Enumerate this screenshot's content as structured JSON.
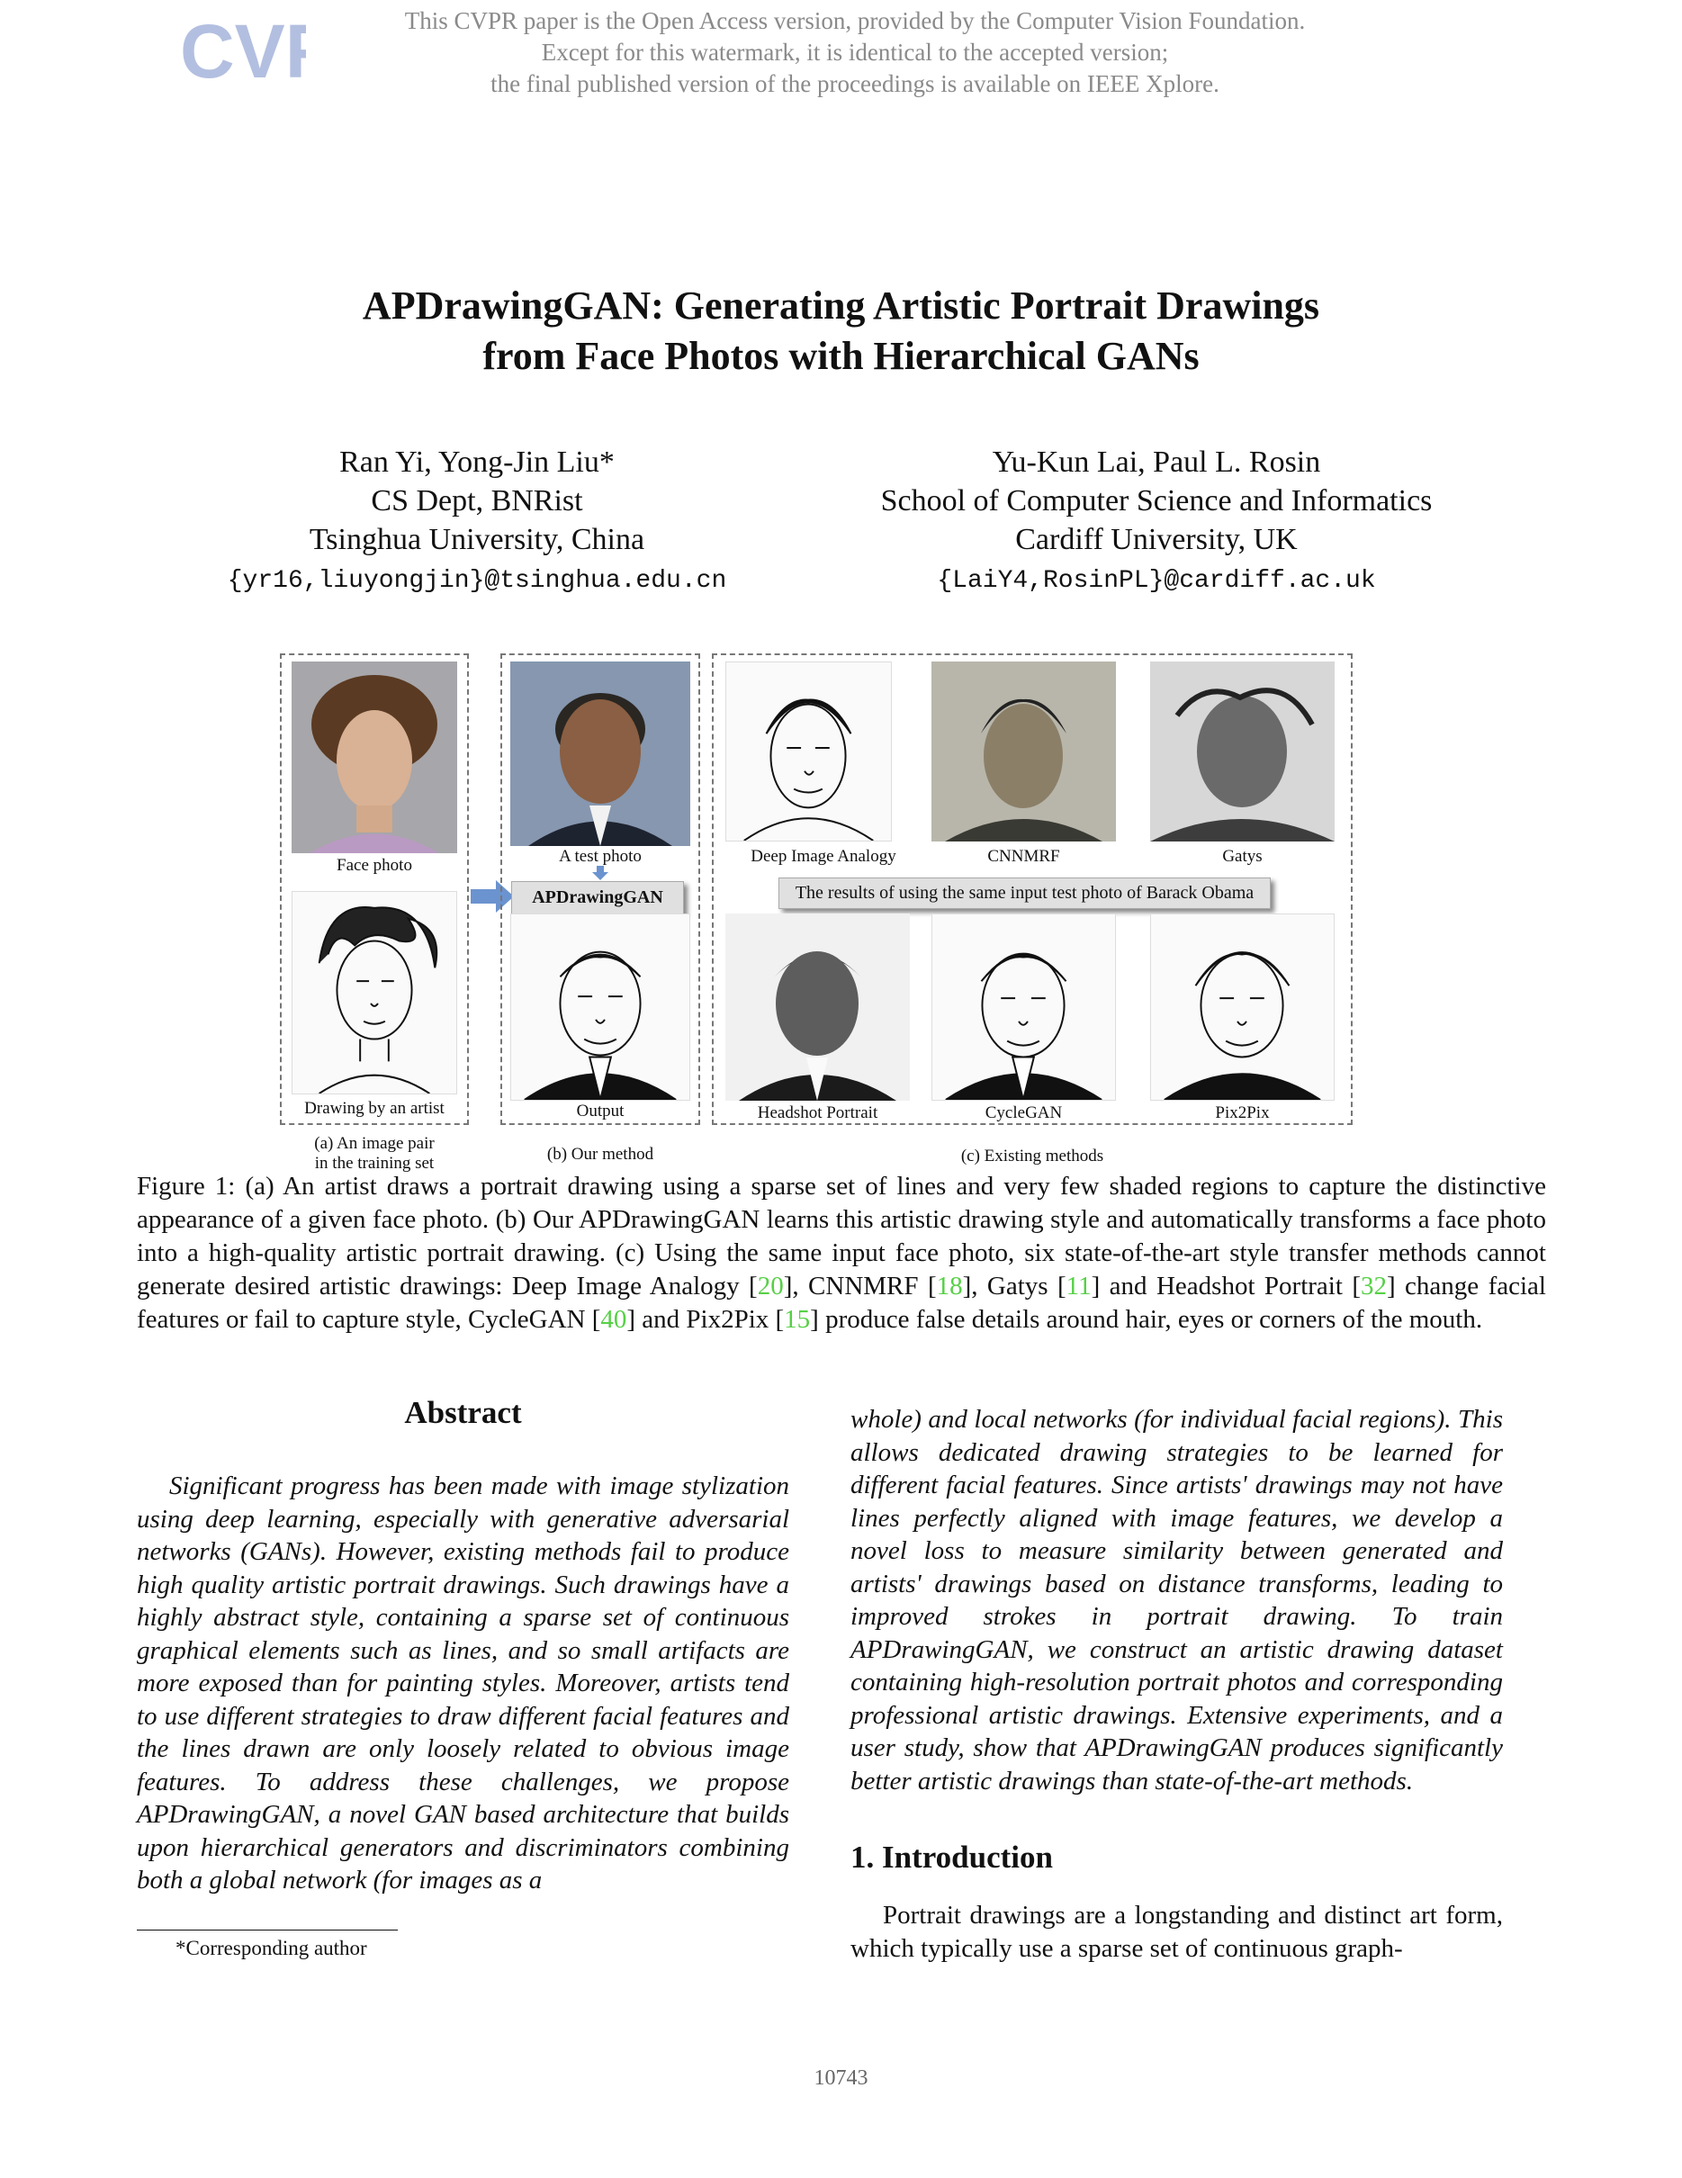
{
  "watermark": {
    "logo_text": "CVF",
    "lines": [
      "This CVPR paper is the Open Access version, provided by the Computer Vision Foundation.",
      "Except for this watermark, it is identical to the accepted version;",
      "the final published version of the proceedings is available on IEEE Xplore."
    ]
  },
  "title": {
    "line1": "APDrawingGAN: Generating Artistic Portrait Drawings",
    "line2": "from Face Photos with Hierarchical GANs"
  },
  "authors": {
    "left": {
      "names": "Ran Yi, Yong-Jin Liu*",
      "dept": "CS Dept, BNRist",
      "univ": "Tsinghua University, China",
      "email": "{yr16,liuyongjin}@tsinghua.edu.cn"
    },
    "right": {
      "names": "Yu-Kun Lai, Paul L. Rosin",
      "dept": "School of Computer Science and Informatics",
      "univ": "Cardiff University, UK",
      "email": "{LaiY4,RosinPL}@cardiff.ac.uk"
    }
  },
  "figure": {
    "labels": {
      "face_photo": "Face photo",
      "drawing_by_artist": "Drawing by an artist",
      "test_photo": "A test photo",
      "method": "APDrawingGAN",
      "output": "Output",
      "deep_image_analogy": "Deep Image Analogy",
      "cnnmrf": "CNNMRF",
      "gatys": "Gatys",
      "banner": "The results of using the same input test photo of Barack Obama",
      "headshot_portrait": "Headshot Portrait",
      "cyclegan": "CycleGAN",
      "pix2pix": "Pix2Pix"
    },
    "subcaptions": {
      "a_line1": "(a) An image pair",
      "a_line2": "in the training set",
      "b": "(b) Our method",
      "c": "(c) Existing methods"
    },
    "caption": {
      "p1": "Figure 1:  (a) An artist draws a portrait drawing using a sparse set of lines and very few shaded regions to capture the distinctive appearance of a given face photo.  (b) Our APDrawingGAN learns this artistic drawing style and automatically transforms a face photo into a high-quality artistic portrait drawing. (c) Using the same input face photo, six state-of-the-art style transfer methods cannot generate desired artistic drawings: Deep Image Analogy [",
      "c1": "20",
      "p2": "], CNNMRF [",
      "c2": "18",
      "p3": "], Gatys [",
      "c3": "11",
      "p4": "] and Headshot Portrait [",
      "c4": "32",
      "p5": "] change facial features or fail to capture style, CycleGAN [",
      "c5": "40",
      "p6": "] and Pix2Pix [",
      "c6": "15",
      "p7": "] produce false details around hair, eyes or corners of the mouth."
    }
  },
  "abstract": {
    "heading": "Abstract",
    "left_text": "Significant progress has been made with image stylization using deep learning, especially with generative adversarial networks (GANs). However, existing methods fail to produce high quality artistic portrait drawings. Such drawings have a highly abstract style, containing a sparse set of continuous graphical elements such as lines, and so small artifacts are more exposed than for painting styles. Moreover, artists tend to use different strategies to draw different facial features and the lines drawn are only loosely related to obvious image features. To address these challenges, we propose APDrawingGAN, a novel GAN based architecture that builds upon hierarchical generators and discriminators combining both a global network (for images as a",
    "right_text": "whole) and local networks (for individual facial regions). This allows dedicated drawing strategies to be learned for different facial features. Since artists' drawings may not have lines perfectly aligned with image features, we develop a novel loss to measure similarity between generated and artists' drawings based on distance transforms, leading to improved strokes in portrait drawing. To train APDrawingGAN, we construct an artistic drawing dataset containing high-resolution portrait photos and corresponding professional artistic drawings. Extensive experiments, and a user study, show that APDrawingGAN produces significantly better artistic drawings than state-of-the-art methods."
  },
  "introduction": {
    "heading": "1. Introduction",
    "text": "Portrait drawings are a longstanding and distinct art form, which typically use a sparse set of continuous graph-"
  },
  "footnote": "*Corresponding author",
  "page_number": "10743"
}
